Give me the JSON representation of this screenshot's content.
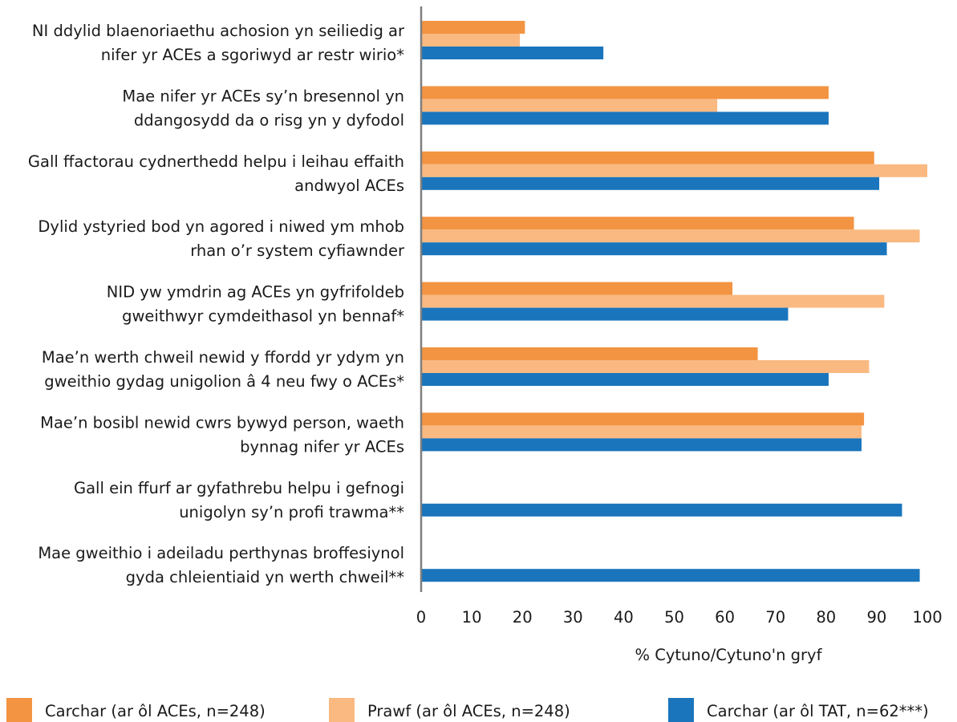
{
  "chart_data": {
    "type": "bar",
    "orientation": "horizontal",
    "title": "",
    "xlabel": "% Cytuno/Cytuno'n gryf",
    "ylabel": "",
    "xlim": [
      0,
      100
    ],
    "xticks": [
      "0",
      "10",
      "20",
      "30",
      "40",
      "50",
      "60",
      "70",
      "80",
      "90",
      "100"
    ],
    "grid": false,
    "legend_position": "bottom",
    "categories": [
      [
        "NI ddylid blaenoriaethu achosion yn seiliedig ar",
        "nifer yr ACEs a sgoriwyd ar restr wirio*"
      ],
      [
        "Mae nifer yr ACEs sy’n bresennol yn",
        "ddangosydd da o risg yn y dyfodol"
      ],
      [
        "Gall ffactorau cydnerthedd helpu i leihau effaith",
        "andwyol ACEs"
      ],
      [
        "Dylid ystyried bod yn agored i niwed ym mhob",
        "rhan o’r system cyfiawnder"
      ],
      [
        "NID yw ymdrin ag ACEs yn gyfrifoldeb",
        "gweithwyr cymdeithasol yn bennaf*"
      ],
      [
        "Mae’n werth chweil newid y ffordd yr ydym yn",
        "gweithio gydag unigolion â 4 neu fwy o ACEs*"
      ],
      [
        "Mae’n bosibl newid cwrs bywyd person, waeth",
        "bynnag nifer yr ACEs"
      ],
      [
        "Gall ein ffurf ar gyfathrebu helpu i gefnogi",
        "unigolyn sy’n profi trawma**"
      ],
      [
        "Mae gweithio i adeiladu perthynas broffesiynol",
        "gyda chleientiaid yn werth chweil**"
      ]
    ],
    "series": [
      {
        "name": "Carchar (ar ôl ACEs, n=248)",
        "color": "#F39442",
        "values": [
          20.5,
          80.5,
          89.5,
          85.5,
          61.5,
          66.5,
          87.5,
          null,
          null
        ]
      },
      {
        "name": "Prawf (ar ôl ACEs, n=248)",
        "color": "#F9B981",
        "values": [
          19.5,
          58.5,
          100,
          98.5,
          91.5,
          88.5,
          87,
          null,
          null
        ]
      },
      {
        "name": "Carchar (ar ôl TAT, n=62***)",
        "color": "#1A75BC",
        "values": [
          36,
          80.5,
          90.5,
          92,
          72.5,
          80.5,
          87,
          95,
          98.5
        ]
      }
    ]
  }
}
